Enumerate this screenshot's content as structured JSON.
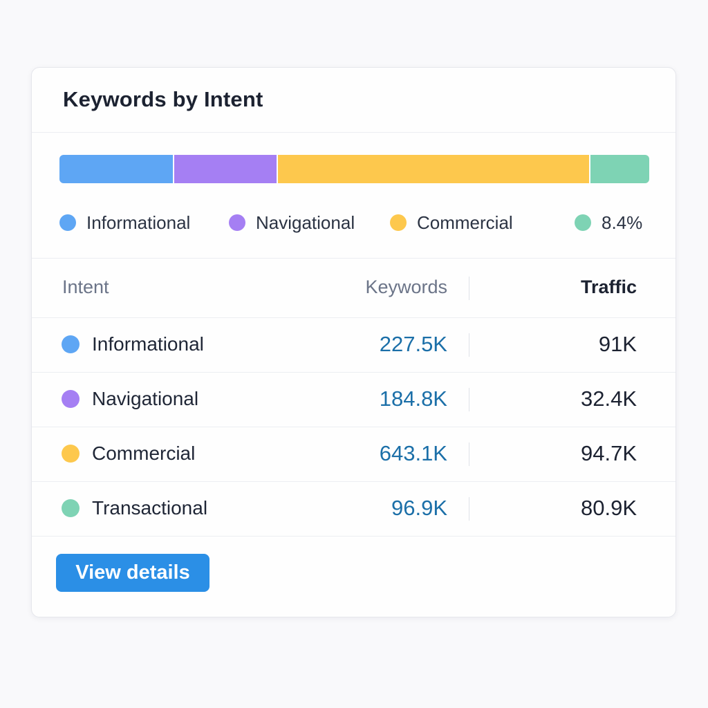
{
  "card": {
    "title": "Keywords by Intent"
  },
  "colors": {
    "informational": "#5ea6f4",
    "navigational": "#a57ff3",
    "commercial": "#fdc84d",
    "transactional": "#7ed3b4",
    "keywords_text": "#1b6fa8",
    "button": "#2b8fe6"
  },
  "distribution_bar": {
    "segments": [
      {
        "intent": "Informational",
        "share_percent": 19.2
      },
      {
        "intent": "Navigational",
        "share_percent": 17.6
      },
      {
        "intent": "Commercial",
        "share_percent": 53.0
      },
      {
        "intent": "Transactional",
        "share_percent": 10.2
      }
    ]
  },
  "legend": {
    "items": [
      {
        "label": "Informational"
      },
      {
        "label": "Navigational"
      },
      {
        "label": "Commercial"
      },
      {
        "label": "8.4%"
      }
    ]
  },
  "table": {
    "headers": {
      "intent": "Intent",
      "keywords": "Keywords",
      "traffic": "Traffic"
    },
    "rows": [
      {
        "intent": "Informational",
        "keywords": "227.5K",
        "traffic": "91K"
      },
      {
        "intent": "Navigational",
        "keywords": "184.8K",
        "traffic": "32.4K"
      },
      {
        "intent": "Commercial",
        "keywords": "643.1K",
        "traffic": "94.7K"
      },
      {
        "intent": "Transactional",
        "keywords": "96.9K",
        "traffic": "80.9K"
      }
    ]
  },
  "actions": {
    "view_details_label": "View details"
  }
}
